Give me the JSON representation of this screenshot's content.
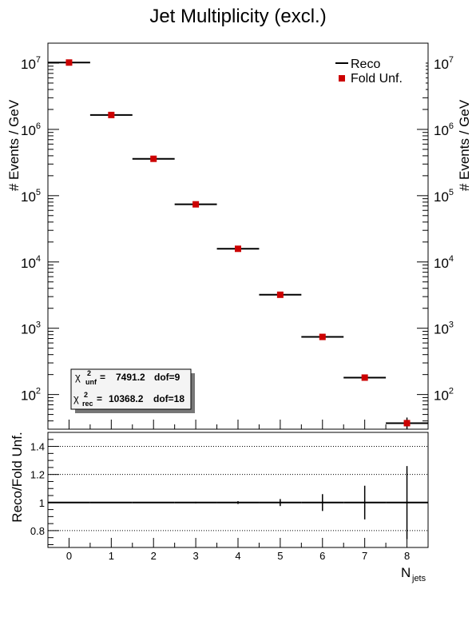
{
  "chart_data": [
    {
      "type": "scatter",
      "title": "Jet Multiplicity (excl.)",
      "ylabel": "# Events / GeV",
      "xlabel": "N_jets",
      "xlabel_main": "N",
      "xlabel_sub": "jets",
      "x": [
        0,
        1,
        2,
        3,
        4,
        5,
        6,
        7,
        8
      ],
      "xlim": [
        -0.5,
        8.5
      ],
      "ylog": true,
      "ylim": [
        30,
        20000000
      ],
      "series": [
        {
          "name": "Reco",
          "style": "horizontal-line",
          "color": "#000000",
          "values": [
            10200000,
            1650000,
            360000,
            74000,
            15800,
            3200,
            740,
            180,
            37
          ]
        },
        {
          "name": "Fold Unf.",
          "style": "square-marker",
          "color": "#cc0000",
          "values": [
            10200000,
            1650000,
            360000,
            74000,
            15800,
            3200,
            740,
            180,
            37
          ]
        }
      ],
      "legend_position": "top-right",
      "stats": {
        "unf": {
          "symbol": "χ",
          "sup": "2",
          "sub": "unf",
          "value": "7491.2",
          "dof": "dof=9"
        },
        "rec": {
          "symbol": "χ",
          "sup": "2",
          "sub": "rec",
          "value": "10368.2",
          "dof": "dof=18"
        }
      },
      "y_tick_exponents": [
        2,
        3,
        4,
        5,
        6,
        7
      ]
    },
    {
      "type": "scatter",
      "ylabel": "Reco/Fold Unf.",
      "x": [
        0,
        1,
        2,
        3,
        4,
        5,
        6,
        7,
        8
      ],
      "xlim": [
        -0.5,
        8.5
      ],
      "ylim": [
        0.68,
        1.5
      ],
      "yticks": [
        "0.8",
        "1",
        "1.2",
        "1.4"
      ],
      "ytick_values": [
        0.8,
        1.0,
        1.2,
        1.4
      ],
      "xticks": [
        "0",
        "1",
        "2",
        "3",
        "4",
        "5",
        "6",
        "7",
        "8"
      ],
      "grid_y": [
        0.8,
        1.2,
        1.4
      ],
      "ratio": [
        1,
        1,
        1,
        1,
        1,
        1,
        1,
        1,
        1
      ],
      "ratio_err": [
        0.0005,
        0.001,
        0.002,
        0.005,
        0.01,
        0.025,
        0.06,
        0.12,
        0.26
      ]
    }
  ]
}
